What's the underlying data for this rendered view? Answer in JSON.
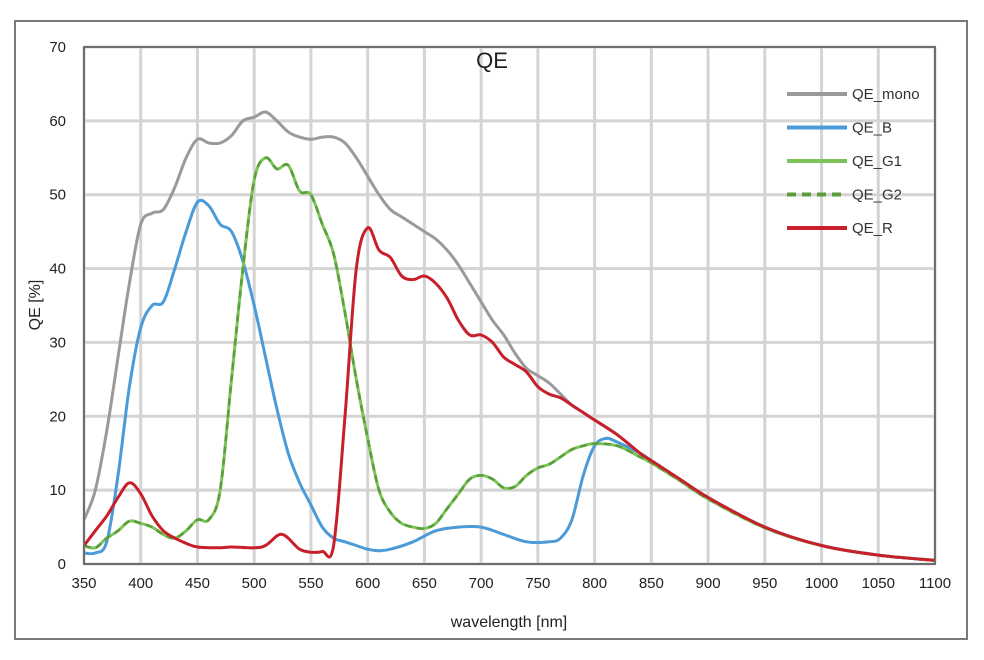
{
  "chart_data": {
    "type": "line",
    "title": "QE",
    "xlabel": "wavelength [nm]",
    "ylabel": "QE [%]",
    "xlim": [
      350,
      1100
    ],
    "ylim": [
      0,
      70
    ],
    "xticks": [
      350,
      400,
      450,
      500,
      550,
      600,
      650,
      700,
      750,
      800,
      850,
      900,
      950,
      1000,
      1050,
      1100
    ],
    "yticks": [
      0,
      10,
      20,
      30,
      40,
      50,
      60,
      70
    ],
    "grid": true,
    "legend_position": "top-right",
    "series": [
      {
        "name": "QE_mono",
        "color": "#9a9a9a",
        "dash": false,
        "x": [
          350,
          360,
          370,
          380,
          390,
          400,
          410,
          420,
          430,
          440,
          450,
          460,
          470,
          480,
          490,
          500,
          510,
          520,
          530,
          540,
          550,
          560,
          570,
          580,
          590,
          600,
          610,
          620,
          630,
          640,
          650,
          660,
          670,
          680,
          690,
          700,
          710,
          720,
          730,
          740,
          750,
          760,
          770,
          780,
          790,
          800,
          820,
          840,
          850,
          875,
          900,
          950,
          1000,
          1050,
          1100
        ],
        "y": [
          6,
          10,
          18,
          28,
          38,
          46,
          47.5,
          48,
          51,
          55,
          57.5,
          57,
          57,
          58,
          60,
          60.5,
          61.2,
          60,
          58.5,
          57.8,
          57.5,
          57.8,
          57.8,
          57,
          55,
          52.5,
          50,
          48,
          47,
          46,
          45,
          44,
          42.5,
          40.5,
          38,
          35.5,
          33,
          31,
          28.5,
          26.5,
          25.5,
          24.5,
          23,
          21.5,
          20.5,
          19.5,
          17.5,
          15,
          14,
          11.5,
          9,
          5,
          2.5,
          1.2,
          0.5
        ]
      },
      {
        "name": "QE_B",
        "color": "#4b9bd9",
        "dash": false,
        "x": [
          350,
          360,
          370,
          380,
          390,
          400,
          410,
          420,
          430,
          440,
          450,
          460,
          470,
          480,
          490,
          500,
          510,
          520,
          530,
          540,
          550,
          560,
          570,
          580,
          590,
          600,
          610,
          620,
          640,
          660,
          680,
          700,
          720,
          740,
          760,
          770,
          780,
          790,
          800,
          810,
          820,
          840,
          850,
          875,
          900,
          950,
          1000,
          1050,
          1100
        ],
        "y": [
          1.5,
          1.5,
          3,
          12,
          24,
          32,
          35,
          35.5,
          40,
          45,
          49,
          48.5,
          46,
          45,
          41,
          35,
          28,
          21,
          15,
          11,
          8,
          5,
          3.5,
          3,
          2.5,
          2,
          1.8,
          2,
          3,
          4.5,
          5,
          5,
          4,
          3,
          3,
          3.5,
          6,
          12,
          16,
          17,
          16.5,
          15,
          14,
          11.5,
          9,
          5,
          2.5,
          1.2,
          0.5
        ]
      },
      {
        "name": "QE_G1",
        "color": "#7dc458",
        "dash": false,
        "x": [
          350,
          360,
          370,
          380,
          390,
          400,
          410,
          420,
          430,
          440,
          450,
          460,
          470,
          480,
          490,
          500,
          510,
          520,
          530,
          540,
          550,
          560,
          570,
          580,
          590,
          600,
          610,
          620,
          630,
          640,
          650,
          660,
          670,
          680,
          690,
          700,
          710,
          720,
          730,
          740,
          750,
          760,
          770,
          780,
          790,
          800,
          820,
          840,
          850,
          875,
          900,
          950,
          1000,
          1050,
          1100
        ],
        "y": [
          2.5,
          2.2,
          3.5,
          4.5,
          5.8,
          5.5,
          5,
          4,
          3.5,
          4.5,
          6,
          6,
          10,
          25,
          40,
          52,
          55,
          53.5,
          54,
          50.5,
          50,
          46,
          42,
          34,
          25,
          17,
          10,
          7,
          5.5,
          5,
          4.8,
          5.5,
          7.5,
          9.5,
          11.5,
          12,
          11.5,
          10.3,
          10.5,
          12,
          13,
          13.5,
          14.5,
          15.5,
          16,
          16.3,
          16,
          14.5,
          13.7,
          11.3,
          8.8,
          4.9,
          2.5,
          1.2,
          0.5
        ]
      },
      {
        "name": "QE_G2",
        "color": "#5a9e3c",
        "dash": true,
        "x": [
          350,
          360,
          370,
          380,
          390,
          400,
          410,
          420,
          430,
          440,
          450,
          460,
          470,
          480,
          490,
          500,
          510,
          520,
          530,
          540,
          550,
          560,
          570,
          580,
          590,
          600,
          610,
          620,
          630,
          640,
          650,
          660,
          670,
          680,
          690,
          700,
          710,
          720,
          730,
          740,
          750,
          760,
          770,
          780,
          790,
          800,
          820,
          840,
          850,
          875,
          900,
          950,
          1000,
          1050,
          1100
        ],
        "y": [
          2.5,
          2.2,
          3.5,
          4.5,
          5.8,
          5.5,
          5,
          4,
          3.5,
          4.5,
          6,
          6,
          10,
          25,
          40,
          52,
          55,
          53.5,
          54,
          50.5,
          50,
          46,
          42,
          34,
          25,
          17,
          10,
          7,
          5.5,
          5,
          4.8,
          5.5,
          7.5,
          9.5,
          11.5,
          12,
          11.5,
          10.3,
          10.5,
          12,
          13,
          13.5,
          14.5,
          15.5,
          16,
          16.3,
          16,
          14.5,
          13.7,
          11.3,
          8.8,
          4.9,
          2.5,
          1.2,
          0.5
        ]
      },
      {
        "name": "QE_R",
        "color": "#c8202b",
        "dash": false,
        "x": [
          350,
          360,
          370,
          380,
          390,
          400,
          410,
          420,
          430,
          440,
          450,
          470,
          480,
          500,
          510,
          520,
          525,
          530,
          540,
          550,
          560,
          570,
          580,
          590,
          600,
          610,
          620,
          630,
          640,
          650,
          660,
          670,
          680,
          690,
          700,
          710,
          720,
          730,
          740,
          750,
          760,
          770,
          780,
          790,
          800,
          820,
          840,
          850,
          875,
          900,
          950,
          1000,
          1050,
          1100
        ],
        "y": [
          2.5,
          4.5,
          6.5,
          9,
          11,
          9.5,
          6.5,
          4.5,
          3.5,
          2.8,
          2.3,
          2.2,
          2.3,
          2.2,
          2.5,
          3.8,
          4,
          3.5,
          2,
          1.6,
          1.7,
          2.5,
          20,
          40,
          45.5,
          42.5,
          41.5,
          39,
          38.5,
          39,
          38,
          36,
          33,
          31,
          31,
          30,
          28,
          27,
          26,
          24,
          23,
          22.5,
          21.5,
          20.5,
          19.5,
          17.5,
          15,
          14,
          11.5,
          9,
          5,
          2.5,
          1.2,
          0.5
        ]
      }
    ]
  }
}
